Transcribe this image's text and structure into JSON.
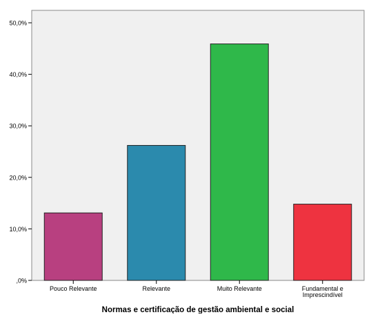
{
  "chart_data": {
    "type": "bar",
    "xlabel": "Normas e certificação de gestão ambiental e social",
    "ylabel": "",
    "ylim": [
      0,
      50
    ],
    "y_ticks": [
      {
        "value": 0,
        "label": ",0%"
      },
      {
        "value": 10,
        "label": "10,0%"
      },
      {
        "value": 20,
        "label": "20,0%"
      },
      {
        "value": 30,
        "label": "30,0%"
      },
      {
        "value": 40,
        "label": "40,0%"
      },
      {
        "value": 50,
        "label": "50,0%"
      }
    ],
    "categories": [
      "Pouco Relevante",
      "Relevante",
      "Muito Relevante",
      "Fundamental e Imprescindível"
    ],
    "category_labels": [
      [
        "Pouco Relevante"
      ],
      [
        "Relevante"
      ],
      [
        "Muito Relevante"
      ],
      [
        "Fundamental e",
        "Imprescindível"
      ]
    ],
    "values": [
      13.1,
      26.2,
      45.9,
      14.8
    ],
    "colors": [
      "#b84080",
      "#2b8aad",
      "#2fb84a",
      "#ee3340"
    ],
    "grid": false,
    "plot_background": "#f0f0f0"
  }
}
